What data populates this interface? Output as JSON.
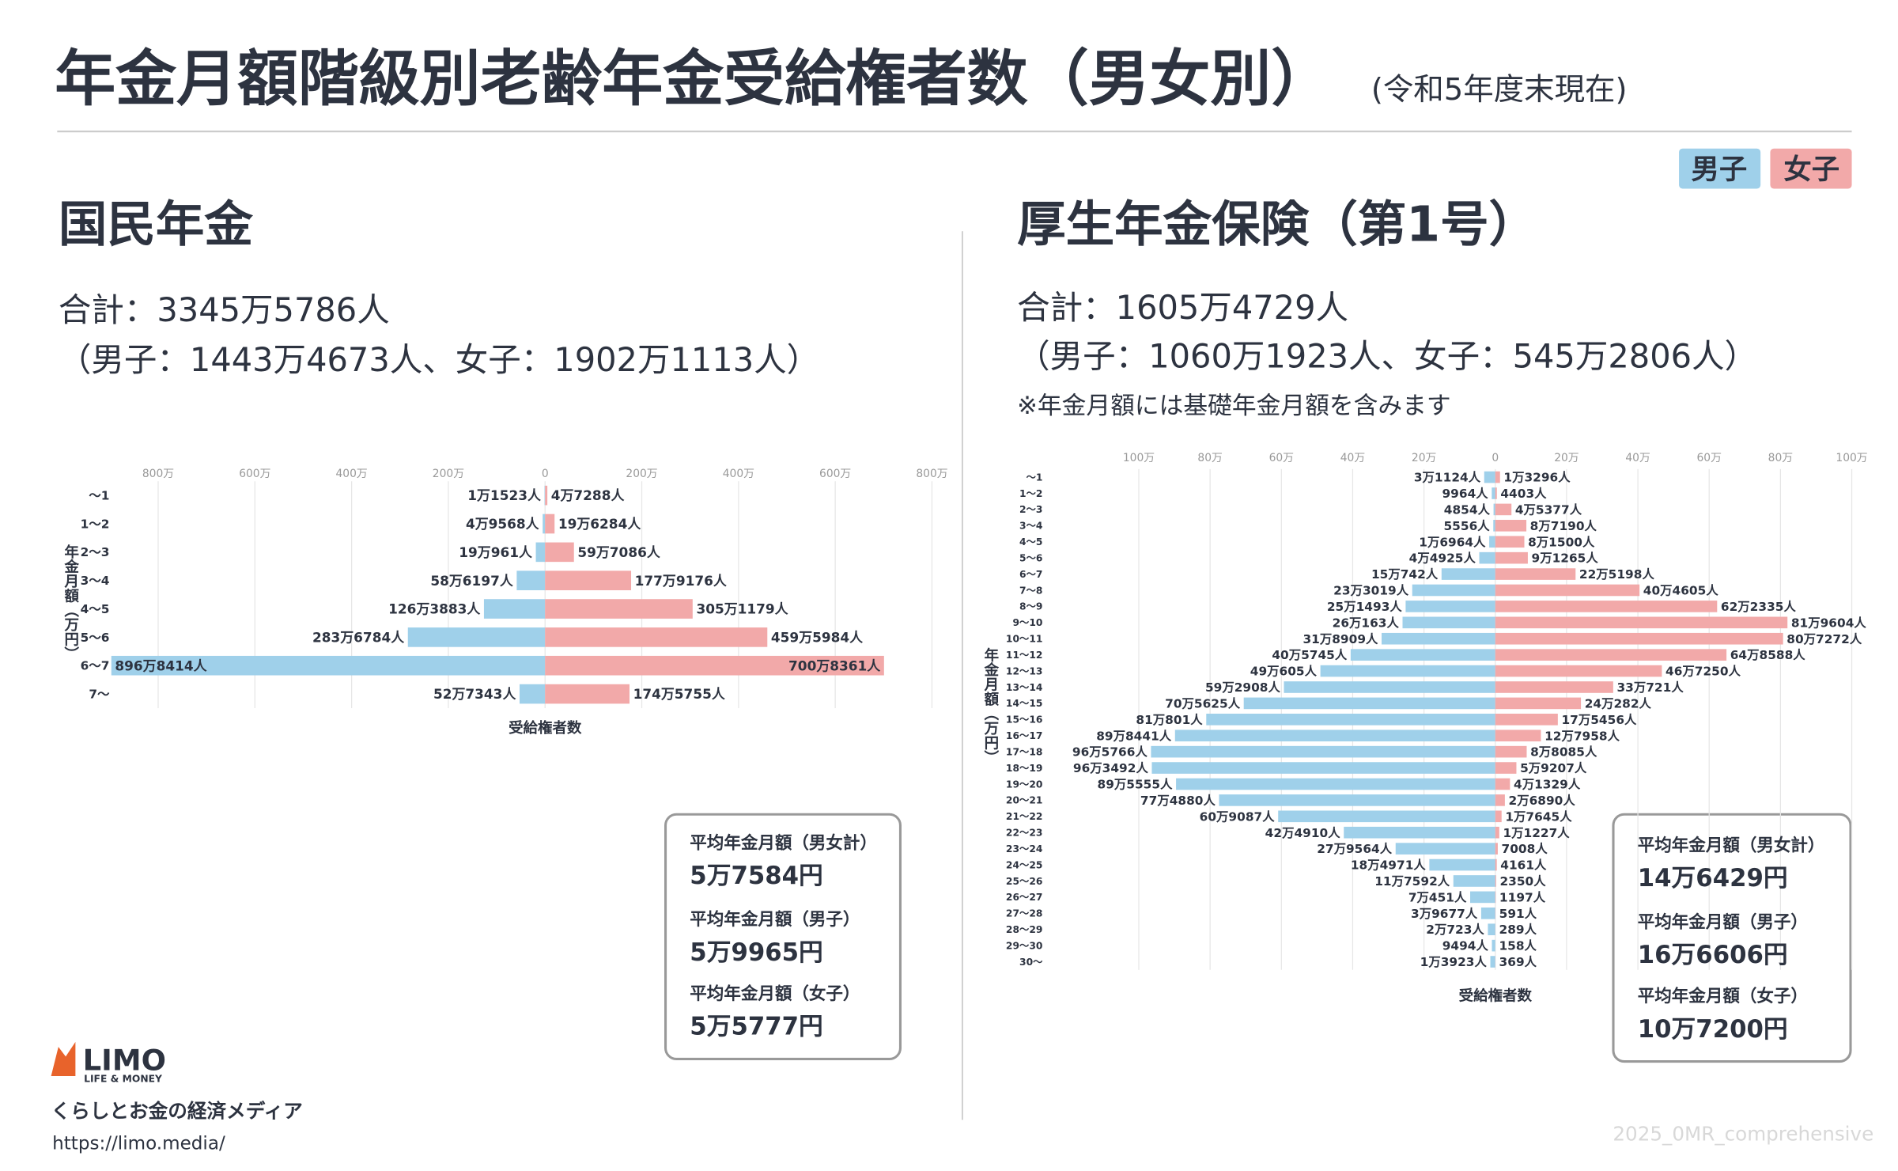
{
  "header": {
    "title": "年金月額階級別老齢年金受給権者数（男女別）",
    "subtitle": "(令和5年度末現在)"
  },
  "footer": {
    "tagline": "くらしとお金の経済メディア",
    "url": "https://limo.media/",
    "brand": "LIMO",
    "brand_sub": "LIFE & MONEY",
    "watermark": "2025_0MR_comprehensive"
  },
  "chart_data": [
    {
      "type": "butterfly",
      "title": "国民年金",
      "summary": [
        "合計：3345万5786人",
        "（男子：1443万4673人、女子：1902万1113人）"
      ],
      "ylabel": "年金月額（万円）",
      "xlabel": "受給権者数",
      "categories": [
        "〜1",
        "1〜2",
        "2〜3",
        "3〜4",
        "4〜5",
        "5〜6",
        "6〜7",
        "7〜"
      ],
      "xlim": [
        0,
        9000000
      ],
      "xticks": [
        0,
        {
          "value": 2000000,
          "label": "200万"
        },
        {
          "value": 4000000,
          "label": "400万"
        },
        {
          "value": 6000000,
          "label": "600万"
        },
        {
          "value": 8000000,
          "label": "800万"
        }
      ],
      "grid": true,
      "series": [
        {
          "name": "男子",
          "color": "#9fd0ea",
          "side": "left",
          "values": [
            11523,
            49568,
            190961,
            586197,
            1263883,
            2836784,
            8968414,
            527343
          ],
          "value_labels": [
            "1万1523人",
            "4万9568人",
            "19万961人",
            "58万6197人",
            "126万3883人",
            "283万6784人",
            "896万8414人",
            "52万7343人"
          ]
        },
        {
          "name": "女子",
          "color": "#f2a9a9",
          "side": "right",
          "values": [
            47288,
            196284,
            597086,
            1779176,
            3051179,
            4595984,
            7008361,
            1745755
          ],
          "value_labels": [
            "4万7288人",
            "19万6284人",
            "59万7086人",
            "177万9176人",
            "305万1179人",
            "459万5984人",
            "700万8361人",
            "174万5755人"
          ]
        }
      ],
      "averages": [
        {
          "label": "平均年金月額（男女計）",
          "value": "5万7584円"
        },
        {
          "label": "平均年金月額（男子）",
          "value": "5万9965円"
        },
        {
          "label": "平均年金月額（女子）",
          "value": "5万5777円"
        }
      ]
    },
    {
      "type": "butterfly",
      "title": "厚生年金保険（第1号）",
      "summary": [
        "合計：1605万4729人",
        "（男子：1060万1923人、女子：545万2806人）"
      ],
      "note": "※年金月額には基礎年金月額を含みます",
      "ylabel": "年金月額（万円）",
      "xlabel": "受給権者数",
      "categories": [
        "〜1",
        "1〜2",
        "2〜3",
        "3〜4",
        "4〜5",
        "5〜6",
        "6〜7",
        "7〜8",
        "8〜9",
        "9〜10",
        "10〜11",
        "11〜12",
        "12〜13",
        "13〜14",
        "14〜15",
        "15〜16",
        "16〜17",
        "17〜18",
        "18〜19",
        "19〜20",
        "20〜21",
        "21〜22",
        "22〜23",
        "23〜24",
        "24〜25",
        "25〜26",
        "26〜27",
        "27〜28",
        "28〜29",
        "29〜30",
        "30〜"
      ],
      "xlim": [
        0,
        1000000
      ],
      "xticks": [
        0,
        {
          "value": 200000,
          "label": "20万"
        },
        {
          "value": 400000,
          "label": "40万"
        },
        {
          "value": 600000,
          "label": "60万"
        },
        {
          "value": 800000,
          "label": "80万"
        },
        {
          "value": 1000000,
          "label": "100万"
        }
      ],
      "grid": true,
      "series": [
        {
          "name": "男子",
          "color": "#9fd0ea",
          "side": "left",
          "values": [
            31124,
            9964,
            4854,
            5556,
            16964,
            44925,
            150742,
            233019,
            251493,
            260163,
            318909,
            405745,
            490605,
            592908,
            705625,
            810801,
            898441,
            965766,
            963492,
            895555,
            774880,
            609087,
            424910,
            279564,
            184971,
            117592,
            70451,
            39677,
            20723,
            9494,
            13923
          ],
          "value_labels": [
            "3万1124人",
            "9964人",
            "4854人",
            "5556人",
            "1万6964人",
            "4万4925人",
            "15万742人",
            "23万3019人",
            "25万1493人",
            "26万163人",
            "31万8909人",
            "40万5745人",
            "49万605人",
            "59万2908人",
            "70万5625人",
            "81万801人",
            "89万8441人",
            "96万5766人",
            "96万3492人",
            "89万5555人",
            "77万4880人",
            "60万9087人",
            "42万4910人",
            "27万9564人",
            "18万4971人",
            "11万7592人",
            "7万451人",
            "3万9677人",
            "2万723人",
            "9494人",
            "1万3923人"
          ]
        },
        {
          "name": "女子",
          "color": "#f2a9a9",
          "side": "right",
          "values": [
            13296,
            4403,
            45377,
            87190,
            81500,
            91265,
            225198,
            404605,
            622335,
            819604,
            807272,
            648588,
            467250,
            330721,
            240282,
            175456,
            127958,
            88085,
            59207,
            41329,
            26890,
            17645,
            11227,
            7008,
            4161,
            2350,
            1197,
            591,
            289,
            158,
            369
          ],
          "value_labels": [
            "1万3296人",
            "4403人",
            "4万5377人",
            "8万7190人",
            "8万1500人",
            "9万1265人",
            "22万5198人",
            "40万4605人",
            "62万2335人",
            "81万9604人",
            "80万7272人",
            "64万8588人",
            "46万7250人",
            "33万721人",
            "24万282人",
            "17万5456人",
            "12万7958人",
            "8万8085人",
            "5万9207人",
            "4万1329人",
            "2万6890人",
            "1万7645人",
            "1万1227人",
            "7008人",
            "4161人",
            "2350人",
            "1197人",
            "591人",
            "289人",
            "158人",
            "369人"
          ]
        }
      ],
      "averages": [
        {
          "label": "平均年金月額（男女計）",
          "value": "14万6429円"
        },
        {
          "label": "平均年金月額（男子）",
          "value": "16万6606円"
        },
        {
          "label": "平均年金月額（女子）",
          "value": "10万7200円"
        }
      ]
    }
  ]
}
